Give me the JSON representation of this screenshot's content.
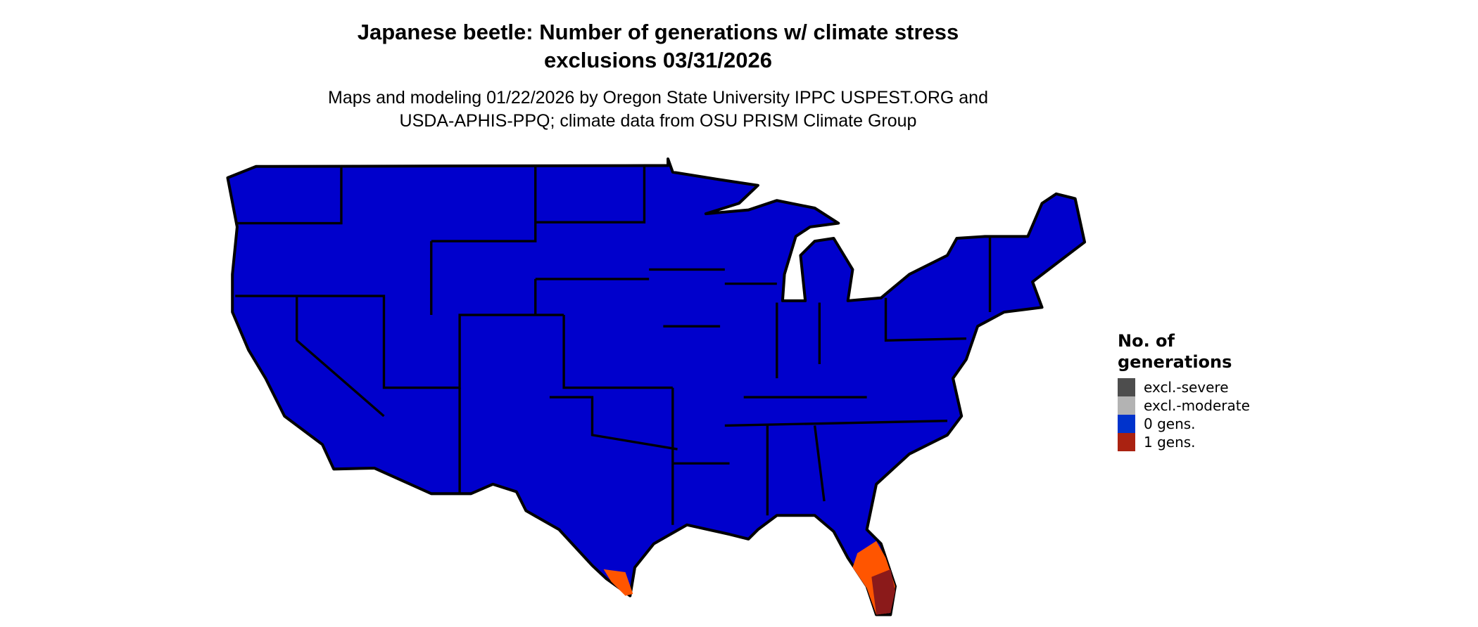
{
  "title": {
    "line1": "Japanese beetle: Number of generations w/ climate stress",
    "line2": "exclusions 03/31/2026"
  },
  "subtitle": {
    "line1": "Maps and modeling 01/22/2026 by Oregon State University IPPC USPEST.ORG and",
    "line2": "USDA-APHIS-PPQ; climate data from OSU PRISM Climate Group"
  },
  "map": {
    "region": "Contiguous United States",
    "fill_color": "#0000cc",
    "border_color": "#000000",
    "hot_area_colors": [
      "#ff5500",
      "#e03a10",
      "#8b1a1a"
    ]
  },
  "legend": {
    "title_line1": "No. of",
    "title_line2": "generations",
    "items": [
      {
        "label": "excl.-severe",
        "color": "#4d4d4d"
      },
      {
        "label": "excl.-moderate",
        "color": "#b3b3b3"
      },
      {
        "label": "0 gens.",
        "color": "#0033cc"
      },
      {
        "label": "1 gens.",
        "color": "#aa2211"
      }
    ]
  }
}
